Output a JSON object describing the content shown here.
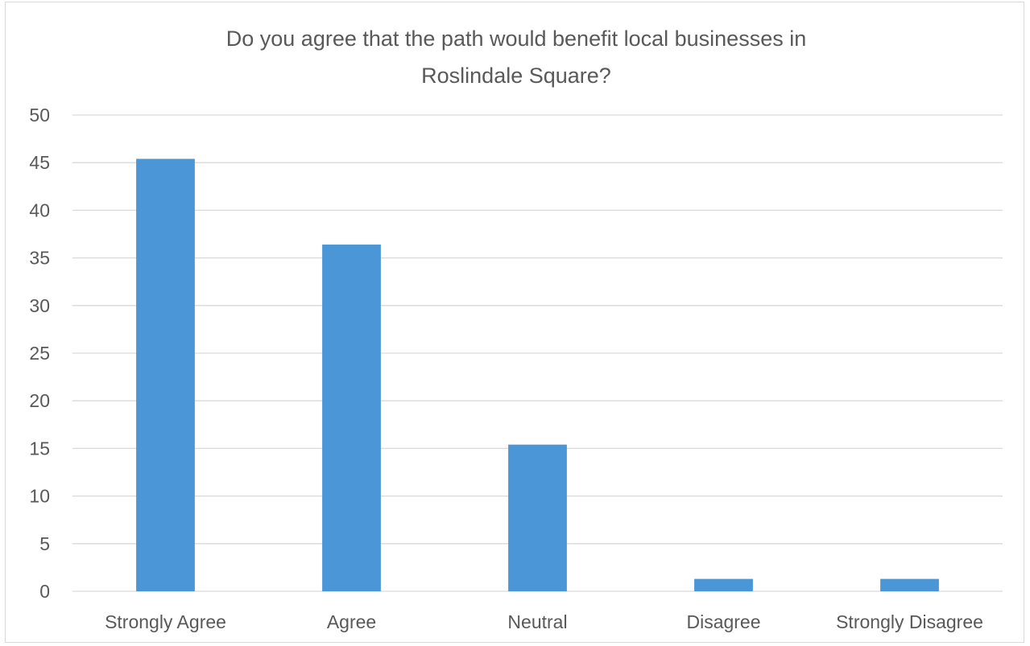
{
  "chart_data": {
    "type": "bar",
    "title_lines": [
      "Do you agree that the path would benefit local businesses  in",
      "Roslindale Square?"
    ],
    "categories": [
      "Strongly Agree",
      "Agree",
      "Neutral",
      "Disagree",
      "Strongly Disagree"
    ],
    "values": [
      45.4,
      36.4,
      15.4,
      1.3,
      1.3
    ],
    "ylim": [
      0,
      50
    ],
    "yticks": [
      0,
      5,
      10,
      15,
      20,
      25,
      30,
      35,
      40,
      45,
      50
    ],
    "grid": true,
    "bar_color": "#4a96d6",
    "grid_color": "#d9d9d9",
    "text_color": "#595959"
  }
}
